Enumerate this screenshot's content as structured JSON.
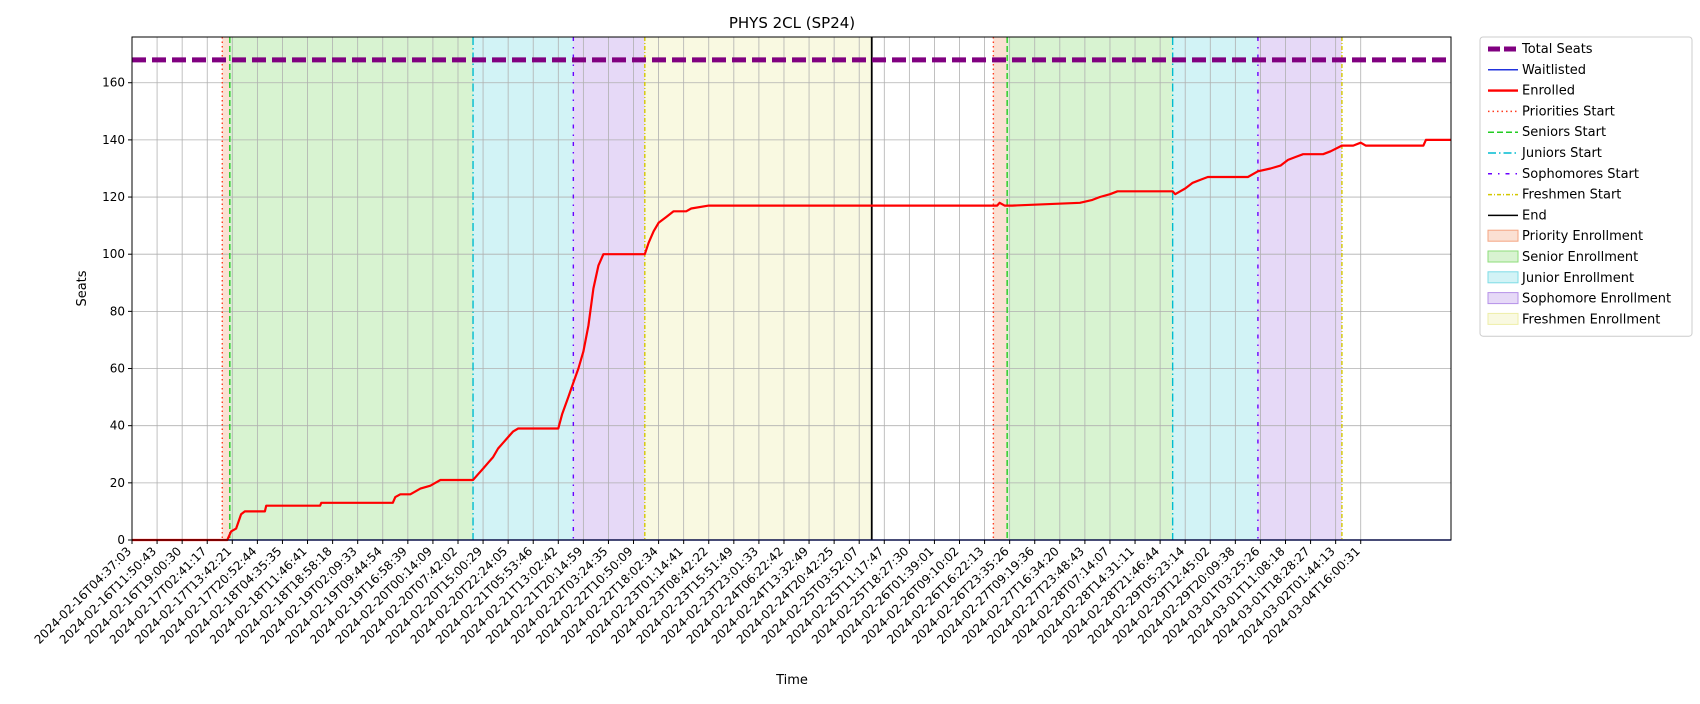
{
  "chart_data": {
    "type": "line",
    "title": "PHYS 2CL (SP24)",
    "xlabel": "Time",
    "ylabel": "Seats",
    "ylim": [
      0,
      176
    ],
    "yticks": [
      0,
      20,
      40,
      60,
      80,
      100,
      120,
      140,
      160
    ],
    "xlim": [
      "2024-02-16T04:37:03",
      "2024-03-05T05:00:00"
    ],
    "xticks": [
      "2024-02-16T04:37:03",
      "2024-02-16T11:50:43",
      "2024-02-16T19:00:30",
      "2024-02-17T02:41:17",
      "2024-02-17T13:42:21",
      "2024-02-17T20:52:44",
      "2024-02-18T04:35:35",
      "2024-02-18T11:46:41",
      "2024-02-18T18:58:18",
      "2024-02-19T02:09:33",
      "2024-02-19T09:44:54",
      "2024-02-19T16:58:39",
      "2024-02-20T00:14:09",
      "2024-02-20T07:42:02",
      "2024-02-20T15:00:29",
      "2024-02-20T22:24:05",
      "2024-02-21T05:53:46",
      "2024-02-21T13:02:42",
      "2024-02-21T20:14:59",
      "2024-02-22T03:24:35",
      "2024-02-22T10:50:09",
      "2024-02-22T18:02:34",
      "2024-02-23T01:14:41",
      "2024-02-23T08:42:22",
      "2024-02-23T15:51:49",
      "2024-02-23T23:01:33",
      "2024-02-24T06:22:42",
      "2024-02-24T13:32:49",
      "2024-02-24T20:42:25",
      "2024-02-25T03:52:07",
      "2024-02-25T11:17:47",
      "2024-02-25T18:27:30",
      "2024-02-26T01:39:01",
      "2024-02-26T09:10:02",
      "2024-02-26T16:22:13",
      "2024-02-26T23:35:26",
      "2024-02-27T09:19:36",
      "2024-02-27T16:34:20",
      "2024-02-27T23:48:43",
      "2024-02-28T07:14:07",
      "2024-02-28T14:31:11",
      "2024-02-28T21:46:44",
      "2024-02-29T05:23:14",
      "2024-02-29T12:45:02",
      "2024-02-29T20:09:38",
      "2024-03-01T03:25:26",
      "2024-03-01T11:08:18",
      "2024-03-01T18:28:27",
      "2024-03-02T01:44:13",
      "2024-03-04T16:00:31"
    ],
    "legend_position": "outside-right",
    "grid": true,
    "total_seats": 168,
    "phase_lines": [
      {
        "name": "Priorities Start",
        "x": 3.6,
        "color": "#ff3b1f",
        "style": "dotted"
      },
      {
        "name": "Seniors Start",
        "x": 3.9,
        "color": "#22cc22",
        "style": "dashed"
      },
      {
        "name": "Juniors Start",
        "x": 13.6,
        "color": "#00bcd0",
        "style": "dashdot"
      },
      {
        "name": "Sophomores Start",
        "x": 17.6,
        "color": "#6a00ff",
        "style": "dashdot-sparse"
      },
      {
        "name": "Freshmen Start",
        "x": 20.45,
        "color": "#d4c800",
        "style": "dashdot-fine"
      },
      {
        "name": "End",
        "x": 29.5,
        "color": "#000000",
        "style": "solid"
      },
      {
        "name": "Priorities Start",
        "x": 34.35,
        "color": "#ff3b1f",
        "style": "dotted"
      },
      {
        "name": "Seniors Start",
        "x": 34.9,
        "color": "#22cc22",
        "style": "dashed"
      },
      {
        "name": "Juniors Start",
        "x": 41.5,
        "color": "#00bcd0",
        "style": "dashdot"
      },
      {
        "name": "Sophomores Start",
        "x": 44.9,
        "color": "#6a00ff",
        "style": "dashdot-sparse"
      },
      {
        "name": "Freshmen Start",
        "x": 48.25,
        "color": "#d4c800",
        "style": "dashdot-fine"
      }
    ],
    "shaded_regions": [
      {
        "name": "Priority Enrollment",
        "x0": 3.6,
        "x1": 3.9,
        "color": "#f4a582"
      },
      {
        "name": "Senior Enrollment",
        "x0": 3.9,
        "x1": 13.6,
        "color": "#8ede7a"
      },
      {
        "name": "Junior Enrollment",
        "x0": 13.6,
        "x1": 17.6,
        "color": "#7edce6"
      },
      {
        "name": "Sophomore Enrollment",
        "x0": 17.6,
        "x1": 20.45,
        "color": "#b691e8"
      },
      {
        "name": "Freshmen Enrollment",
        "x0": 20.45,
        "x1": 29.5,
        "color": "#eeeea8"
      },
      {
        "name": "Priority Enrollment",
        "x0": 34.35,
        "x1": 34.9,
        "color": "#f4a582"
      },
      {
        "name": "Senior Enrollment",
        "x0": 34.9,
        "x1": 41.5,
        "color": "#8ede7a"
      },
      {
        "name": "Junior Enrollment",
        "x0": 41.5,
        "x1": 44.9,
        "color": "#7edce6"
      },
      {
        "name": "Sophomore Enrollment",
        "x0": 44.9,
        "x1": 48.25,
        "color": "#b691e8"
      }
    ],
    "series": [
      {
        "name": "Total Seats",
        "color": "#800080",
        "style": "dashed-thick",
        "points": [
          [
            0,
            168
          ],
          [
            52.6,
            168
          ]
        ]
      },
      {
        "name": "Waitlisted",
        "color": "#2233dd",
        "style": "solid",
        "points": [
          [
            0,
            0
          ],
          [
            52.6,
            0
          ]
        ]
      },
      {
        "name": "Enrolled",
        "color": "#ff0000",
        "style": "solid",
        "points": [
          [
            0,
            0
          ],
          [
            3.8,
            0
          ],
          [
            3.95,
            3
          ],
          [
            4.15,
            4
          ],
          [
            4.35,
            9
          ],
          [
            4.5,
            10
          ],
          [
            5.3,
            10
          ],
          [
            5.35,
            12
          ],
          [
            7.5,
            12
          ],
          [
            7.55,
            13
          ],
          [
            10.4,
            13
          ],
          [
            10.5,
            15
          ],
          [
            10.7,
            16
          ],
          [
            11.1,
            16
          ],
          [
            11.3,
            17
          ],
          [
            11.5,
            18
          ],
          [
            11.9,
            19
          ],
          [
            12.1,
            20
          ],
          [
            12.3,
            21
          ],
          [
            13.6,
            21
          ],
          [
            13.8,
            23
          ],
          [
            14.0,
            25
          ],
          [
            14.2,
            27
          ],
          [
            14.4,
            29
          ],
          [
            14.6,
            32
          ],
          [
            14.8,
            34
          ],
          [
            15.0,
            36
          ],
          [
            15.2,
            38
          ],
          [
            15.4,
            39
          ],
          [
            17.0,
            39
          ],
          [
            17.15,
            44
          ],
          [
            17.4,
            50
          ],
          [
            17.6,
            55
          ],
          [
            17.8,
            60
          ],
          [
            18.0,
            66
          ],
          [
            18.2,
            75
          ],
          [
            18.4,
            88
          ],
          [
            18.6,
            96
          ],
          [
            18.8,
            100
          ],
          [
            20.45,
            100
          ],
          [
            20.6,
            104
          ],
          [
            20.8,
            108
          ],
          [
            21.0,
            111
          ],
          [
            21.3,
            113
          ],
          [
            21.6,
            115
          ],
          [
            22.1,
            115
          ],
          [
            22.3,
            116
          ],
          [
            23.0,
            117
          ],
          [
            34.5,
            117
          ],
          [
            34.6,
            118
          ],
          [
            34.8,
            117
          ],
          [
            35.1,
            117
          ],
          [
            37.8,
            118
          ],
          [
            38.3,
            119
          ],
          [
            38.6,
            120
          ],
          [
            39.0,
            121
          ],
          [
            39.3,
            122
          ],
          [
            41.5,
            122
          ],
          [
            41.6,
            121
          ],
          [
            41.8,
            122
          ],
          [
            42.0,
            123
          ],
          [
            42.3,
            125
          ],
          [
            42.6,
            126
          ],
          [
            42.9,
            127
          ],
          [
            44.5,
            127
          ],
          [
            44.9,
            129
          ],
          [
            45.4,
            130
          ],
          [
            45.8,
            131
          ],
          [
            46.1,
            133
          ],
          [
            46.4,
            134
          ],
          [
            46.7,
            135
          ],
          [
            47.5,
            135
          ],
          [
            47.8,
            136
          ],
          [
            48.25,
            138
          ],
          [
            48.7,
            138
          ],
          [
            49.0,
            139
          ],
          [
            49.2,
            138
          ],
          [
            51.5,
            138
          ],
          [
            51.6,
            140
          ],
          [
            52.6,
            140
          ]
        ]
      }
    ],
    "legend": [
      {
        "label": "Total Seats",
        "kind": "line",
        "color": "#800080",
        "style": "dashed-thick"
      },
      {
        "label": "Waitlisted",
        "kind": "line",
        "color": "#2233dd",
        "style": "solid"
      },
      {
        "label": "Enrolled",
        "kind": "line",
        "color": "#ff0000",
        "style": "solid-thick"
      },
      {
        "label": "Priorities Start",
        "kind": "line",
        "color": "#ff3b1f",
        "style": "dotted"
      },
      {
        "label": "Seniors Start",
        "kind": "line",
        "color": "#22cc22",
        "style": "dashed"
      },
      {
        "label": "Juniors Start",
        "kind": "line",
        "color": "#00bcd0",
        "style": "dashdot"
      },
      {
        "label": "Sophomores Start",
        "kind": "line",
        "color": "#6a00ff",
        "style": "dashdot-sparse"
      },
      {
        "label": "Freshmen Start",
        "kind": "line",
        "color": "#d4c800",
        "style": "dashdot-fine"
      },
      {
        "label": "End",
        "kind": "line",
        "color": "#000000",
        "style": "solid"
      },
      {
        "label": "Priority Enrollment",
        "kind": "patch",
        "color": "#f4a582"
      },
      {
        "label": "Senior Enrollment",
        "kind": "patch",
        "color": "#8ede7a"
      },
      {
        "label": "Junior Enrollment",
        "kind": "patch",
        "color": "#7edce6"
      },
      {
        "label": "Sophomore Enrollment",
        "kind": "patch",
        "color": "#b691e8"
      },
      {
        "label": "Freshmen Enrollment",
        "kind": "patch",
        "color": "#eeeea8"
      }
    ]
  }
}
